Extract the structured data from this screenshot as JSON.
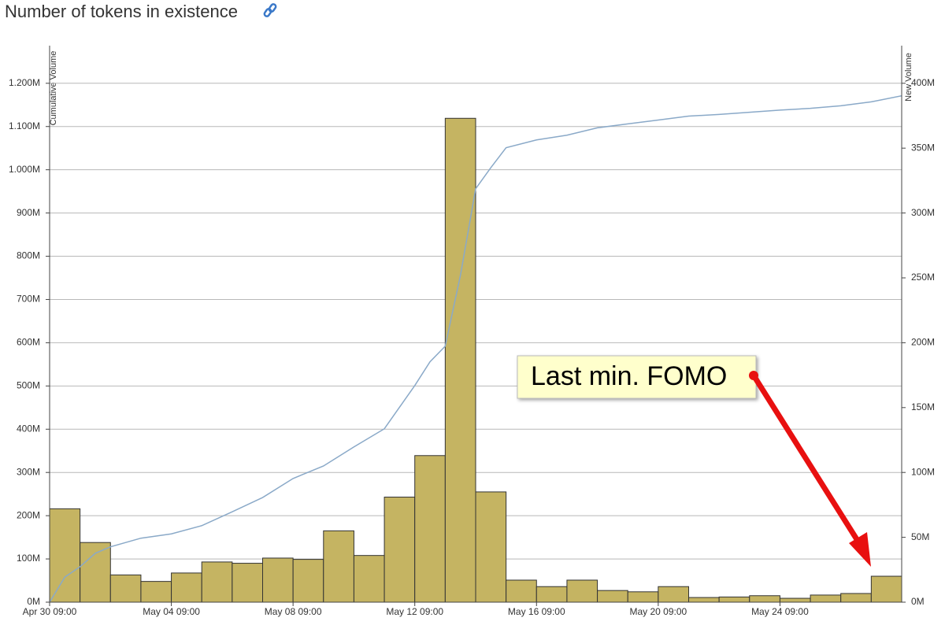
{
  "chart_data": {
    "type": "bar",
    "title": "Number of tokens in existence",
    "y_label": "Cumulative Volume",
    "y2_label": "New Volume",
    "annotation": "Last min. FOMO",
    "grid": true,
    "xlim": [
      0,
      28
    ],
    "xticks": [
      {
        "value": 0,
        "label": "Apr 30 09:00"
      },
      {
        "value": 4,
        "label": "May 04 09:00"
      },
      {
        "value": 8,
        "label": "May 08 09:00"
      },
      {
        "value": 12,
        "label": "May 12 09:00"
      },
      {
        "value": 16,
        "label": "May 16 09:00"
      },
      {
        "value": 20,
        "label": "May 20 09:00"
      },
      {
        "value": 24,
        "label": "May 24 09:00"
      }
    ],
    "ylim": [
      0,
      1287
    ],
    "yticks": [
      {
        "value": 0,
        "label": "0M"
      },
      {
        "value": 100,
        "label": "100M"
      },
      {
        "value": 200,
        "label": "200M"
      },
      {
        "value": 300,
        "label": "300M"
      },
      {
        "value": 400,
        "label": "400M"
      },
      {
        "value": 500,
        "label": "500M"
      },
      {
        "value": 600,
        "label": "600M"
      },
      {
        "value": 700,
        "label": "700M"
      },
      {
        "value": 800,
        "label": "800M"
      },
      {
        "value": 900,
        "label": "900M"
      },
      {
        "value": 1000,
        "label": "1.000M"
      },
      {
        "value": 1100,
        "label": "1.100M"
      },
      {
        "value": 1200,
        "label": "1.200M"
      }
    ],
    "y2lim": [
      0,
      429
    ],
    "y2ticks": [
      {
        "value": 0,
        "label": "0M"
      },
      {
        "value": 50,
        "label": "50M"
      },
      {
        "value": 100,
        "label": "100M"
      },
      {
        "value": 150,
        "label": "150M"
      },
      {
        "value": 200,
        "label": "200M"
      },
      {
        "value": 250,
        "label": "250M"
      },
      {
        "value": 300,
        "label": "300M"
      },
      {
        "value": 350,
        "label": "350M"
      },
      {
        "value": 400,
        "label": "400M"
      }
    ],
    "bins": [
      0,
      1,
      2,
      3,
      4,
      5,
      6,
      7,
      8,
      9,
      10,
      11,
      12,
      13,
      14,
      15,
      16,
      17,
      18,
      19,
      20,
      21,
      22,
      23,
      24,
      25,
      26,
      27,
      28
    ],
    "bars": {
      "axis": "y2",
      "color": "#c5b462",
      "values": [
        72,
        46,
        21,
        16,
        22.5,
        31,
        30,
        34,
        33,
        55,
        36,
        81,
        113,
        373,
        85,
        17,
        12,
        17,
        9,
        8,
        12,
        3.6,
        4,
        5,
        3,
        5.5,
        6.7,
        20
      ]
    },
    "line": {
      "color": "#8aa9c8",
      "x": [
        0,
        0.5,
        1,
        1.5,
        2,
        3,
        4,
        5,
        6,
        7,
        8,
        9,
        10,
        11,
        12,
        12.5,
        13,
        13.5,
        14,
        14.5,
        15,
        16,
        17,
        18,
        19,
        20,
        21,
        22,
        23,
        24,
        25,
        26,
        27,
        28
      ],
      "values": [
        0,
        58,
        82,
        113,
        128,
        148,
        158,
        177,
        209,
        242,
        286,
        315,
        359,
        401,
        501,
        556,
        592,
        756,
        956,
        1005,
        1051,
        1069,
        1080,
        1097,
        1106,
        1115,
        1124,
        1128,
        1133,
        1138,
        1142,
        1148,
        1157,
        1171
      ]
    }
  }
}
